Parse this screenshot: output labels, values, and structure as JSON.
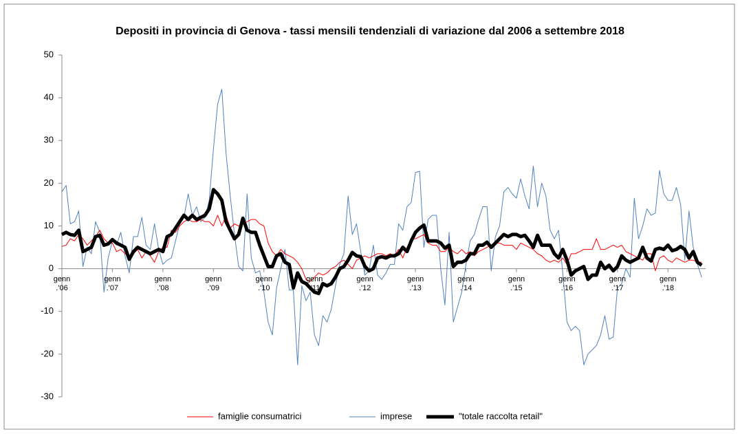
{
  "chart_data": {
    "type": "line",
    "title": "Depositi in provincia di Genova - tassi mensili tendenziali di variazione dal 2006  a settembre 2018",
    "categories": [
      "genn\n.'06",
      null,
      null,
      null,
      null,
      null,
      null,
      null,
      null,
      null,
      null,
      null,
      "genn\n.'07",
      null,
      null,
      null,
      null,
      null,
      null,
      null,
      null,
      null,
      null,
      null,
      "genn\n.'08",
      null,
      null,
      null,
      null,
      null,
      null,
      null,
      null,
      null,
      null,
      null,
      "genn\n.'09",
      null,
      null,
      null,
      null,
      null,
      null,
      null,
      null,
      null,
      null,
      null,
      "genn\n.'10",
      null,
      null,
      null,
      null,
      null,
      null,
      null,
      null,
      null,
      null,
      null,
      "genn\n.'11",
      null,
      null,
      null,
      null,
      null,
      null,
      null,
      null,
      null,
      null,
      null,
      "genn\n.'12",
      null,
      null,
      null,
      null,
      null,
      null,
      null,
      null,
      null,
      null,
      null,
      "genn\n.'13",
      null,
      null,
      null,
      null,
      null,
      null,
      null,
      null,
      null,
      null,
      null,
      "genn\n.'14",
      null,
      null,
      null,
      null,
      null,
      null,
      null,
      null,
      null,
      null,
      null,
      "genn\n.'15",
      null,
      null,
      null,
      null,
      null,
      null,
      null,
      null,
      null,
      null,
      null,
      "genn\n.'16",
      null,
      null,
      null,
      null,
      null,
      null,
      null,
      null,
      null,
      null,
      null,
      "genn\n.'17",
      null,
      null,
      null,
      null,
      null,
      null,
      null,
      null,
      null,
      null,
      null,
      "genn\n.'18",
      null,
      null,
      null,
      null,
      null,
      null,
      null,
      null
    ],
    "series": [
      {
        "name": "famiglie consumatrici",
        "color": "#ff0000",
        "width": 1,
        "values": [
          5.2,
          5.5,
          7,
          6.5,
          8,
          7,
          5.5,
          6.5,
          7.5,
          9,
          7,
          6,
          6,
          4,
          4.5,
          3.5,
          3,
          3.5,
          4.5,
          2.5,
          4,
          3,
          1.5,
          4,
          5,
          5,
          9,
          8.5,
          10,
          11,
          11.5,
          11,
          11,
          11.5,
          11,
          11,
          10,
          12.5,
          10,
          12.5,
          9.5,
          10.5,
          10,
          10.5,
          11,
          11.5,
          11.5,
          10.5,
          10,
          6,
          4,
          3,
          4.5,
          3.5,
          3,
          2.5,
          1.5,
          0,
          -2.5,
          -3,
          -2,
          -1,
          -1.5,
          -1,
          0,
          0.5,
          1.5,
          2,
          1,
          0,
          2,
          2.5,
          3,
          2.5,
          3,
          3.5,
          3.5,
          3,
          3.5,
          3,
          4.5,
          2.5,
          5,
          7,
          7,
          7.5,
          8,
          6,
          5.5,
          5.5,
          4,
          4,
          5,
          4,
          3.5,
          4.5,
          3.5,
          4,
          3,
          4,
          4.5,
          5,
          5.5,
          6,
          6,
          5.5,
          5.5,
          5.5,
          4.5,
          6,
          5.5,
          5,
          4.5,
          3.5,
          3,
          2,
          1.5,
          2,
          1.5,
          2.5,
          1,
          3.5,
          3.5,
          4,
          4.5,
          4.5,
          4.5,
          7,
          4.5,
          4.5,
          5,
          5.5,
          5,
          5.5,
          4,
          3.5,
          3,
          2.5,
          2,
          3.5,
          3.5,
          -0.5,
          2.5,
          3,
          2,
          1.5,
          2.5,
          2,
          1.5,
          2,
          2,
          1.5,
          1.5
        ]
      },
      {
        "name": "imprese",
        "color": "#4f81bd",
        "width": 1,
        "values": [
          18,
          19.5,
          10.5,
          11,
          13.5,
          0.5,
          5,
          3.5,
          11,
          8.5,
          -5.5,
          2.5,
          6.5,
          5.5,
          8.5,
          3,
          -1,
          7.5,
          7.5,
          12,
          5.5,
          4.5,
          10.5,
          4.5,
          1,
          2,
          2.5,
          6.5,
          10.5,
          12,
          17.5,
          12.5,
          14.5,
          11,
          12,
          16,
          28,
          38.5,
          42,
          27,
          17,
          8,
          0.5,
          -0.5,
          17.5,
          2.5,
          -1,
          -0.5,
          -5.5,
          -12.5,
          -15.5,
          -4.5,
          0,
          4.5,
          -5,
          -5,
          -22.5,
          -4,
          -7.5,
          -5.5,
          -15.5,
          -18,
          -11,
          -12.5,
          -9.5,
          -4,
          1,
          3.5,
          17,
          8,
          10.5,
          4,
          -1.5,
          -0.5,
          5.5,
          -1.5,
          -2.5,
          -1,
          1,
          1,
          10.5,
          9,
          14.5,
          15.5,
          22.5,
          22.8,
          5,
          11.5,
          12.5,
          12.5,
          0,
          -8.5,
          8.5,
          -12.5,
          -9,
          -5.5,
          1,
          6.5,
          8,
          11.5,
          14.5,
          14.5,
          -0.5,
          7.5,
          10,
          18,
          19,
          17.5,
          16.5,
          21,
          17,
          14,
          24,
          14.5,
          20,
          17,
          9,
          7,
          9,
          -1,
          -12.5,
          -14.5,
          -13.5,
          -14.5,
          -22.5,
          -20,
          -19,
          -18,
          -15.5,
          -11,
          -16.5,
          -16,
          -4.5,
          -3.5,
          0,
          -2,
          16.5,
          7,
          10,
          14,
          12.5,
          13,
          23,
          17.5,
          16,
          16,
          19,
          15,
          2,
          13.5,
          5,
          1,
          -2
        ]
      },
      {
        "name": "\"totale raccolta retail\"",
        "color": "#000000",
        "width": 5,
        "values": [
          8,
          8.5,
          8,
          7.8,
          9,
          4,
          4.5,
          5,
          7.5,
          7.8,
          5.5,
          5.8,
          6.8,
          6,
          5.5,
          5,
          2.2,
          4,
          5,
          4.5,
          4,
          3.5,
          4,
          4.5,
          4,
          7.5,
          8,
          9.5,
          11,
          12.5,
          11.5,
          12.5,
          11.5,
          12,
          12.5,
          14,
          18.5,
          17.5,
          16,
          11,
          9,
          7,
          8,
          11.8,
          9,
          8.5,
          8.5,
          5.5,
          3,
          0.5,
          0.5,
          3,
          3.5,
          1.5,
          1,
          -4.5,
          -1,
          -3,
          -3.5,
          -4.5,
          -5.5,
          -5.8,
          -3.5,
          -4,
          -3.5,
          -2,
          0,
          0.5,
          2,
          3.8,
          3,
          2.8,
          0.5,
          -0.5,
          0,
          2.5,
          2.8,
          2.5,
          3,
          3,
          3.5,
          5,
          4,
          6.5,
          8.5,
          9.5,
          10.2,
          6.5,
          6.5,
          6.5,
          6,
          4.8,
          5.5,
          0.5,
          1.5,
          1.5,
          2,
          3.5,
          3.5,
          5.5,
          5.5,
          6.2,
          5,
          6,
          7,
          8,
          7.5,
          8,
          8,
          7.5,
          7.8,
          6.5,
          5,
          7.8,
          5.5,
          5.5,
          5.5,
          3.5,
          2.5,
          4.5,
          2,
          -1.5,
          -0.5,
          0,
          0.5,
          -2.5,
          -1.5,
          -1.5,
          1.5,
          0,
          0.8,
          -0.5,
          0.5,
          3,
          2,
          1.5,
          2,
          2.5,
          5,
          2.5,
          1.8,
          4.5,
          4.8,
          4.5,
          5.5,
          4.2,
          4.5,
          5.2,
          4.5,
          2.5,
          4,
          1.5,
          0.8
        ]
      }
    ],
    "ylim": [
      -30,
      50
    ],
    "yticks": [
      -30,
      -20,
      -10,
      0,
      10,
      20,
      30,
      40,
      50
    ],
    "grid": false,
    "legend": "bottom"
  }
}
